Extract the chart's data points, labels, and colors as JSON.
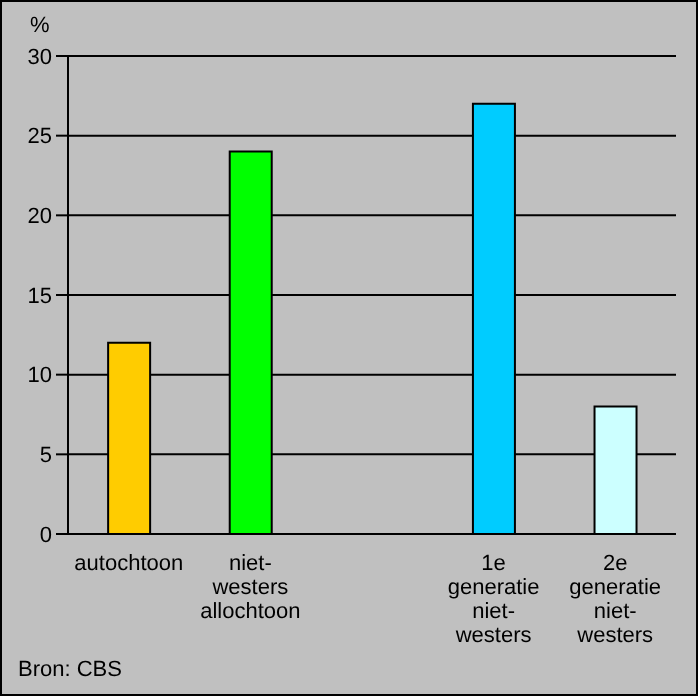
{
  "chart_data": {
    "type": "bar",
    "ylabel": "%",
    "categories": [
      "autochtoon",
      "niet-westers allochtoon",
      null,
      "1e generatie niet-westers",
      "2e generatie niet-westers"
    ],
    "values": [
      12,
      24,
      null,
      27,
      8
    ],
    "colors": [
      "#ffcc00",
      "#00ff00",
      null,
      "#00ccff",
      "#ccffff"
    ],
    "ylim": [
      0,
      30
    ],
    "yticks": [
      0,
      5,
      10,
      15,
      20,
      25,
      30
    ],
    "grid": "y",
    "annotations": [
      "Bron: CBS"
    ]
  }
}
